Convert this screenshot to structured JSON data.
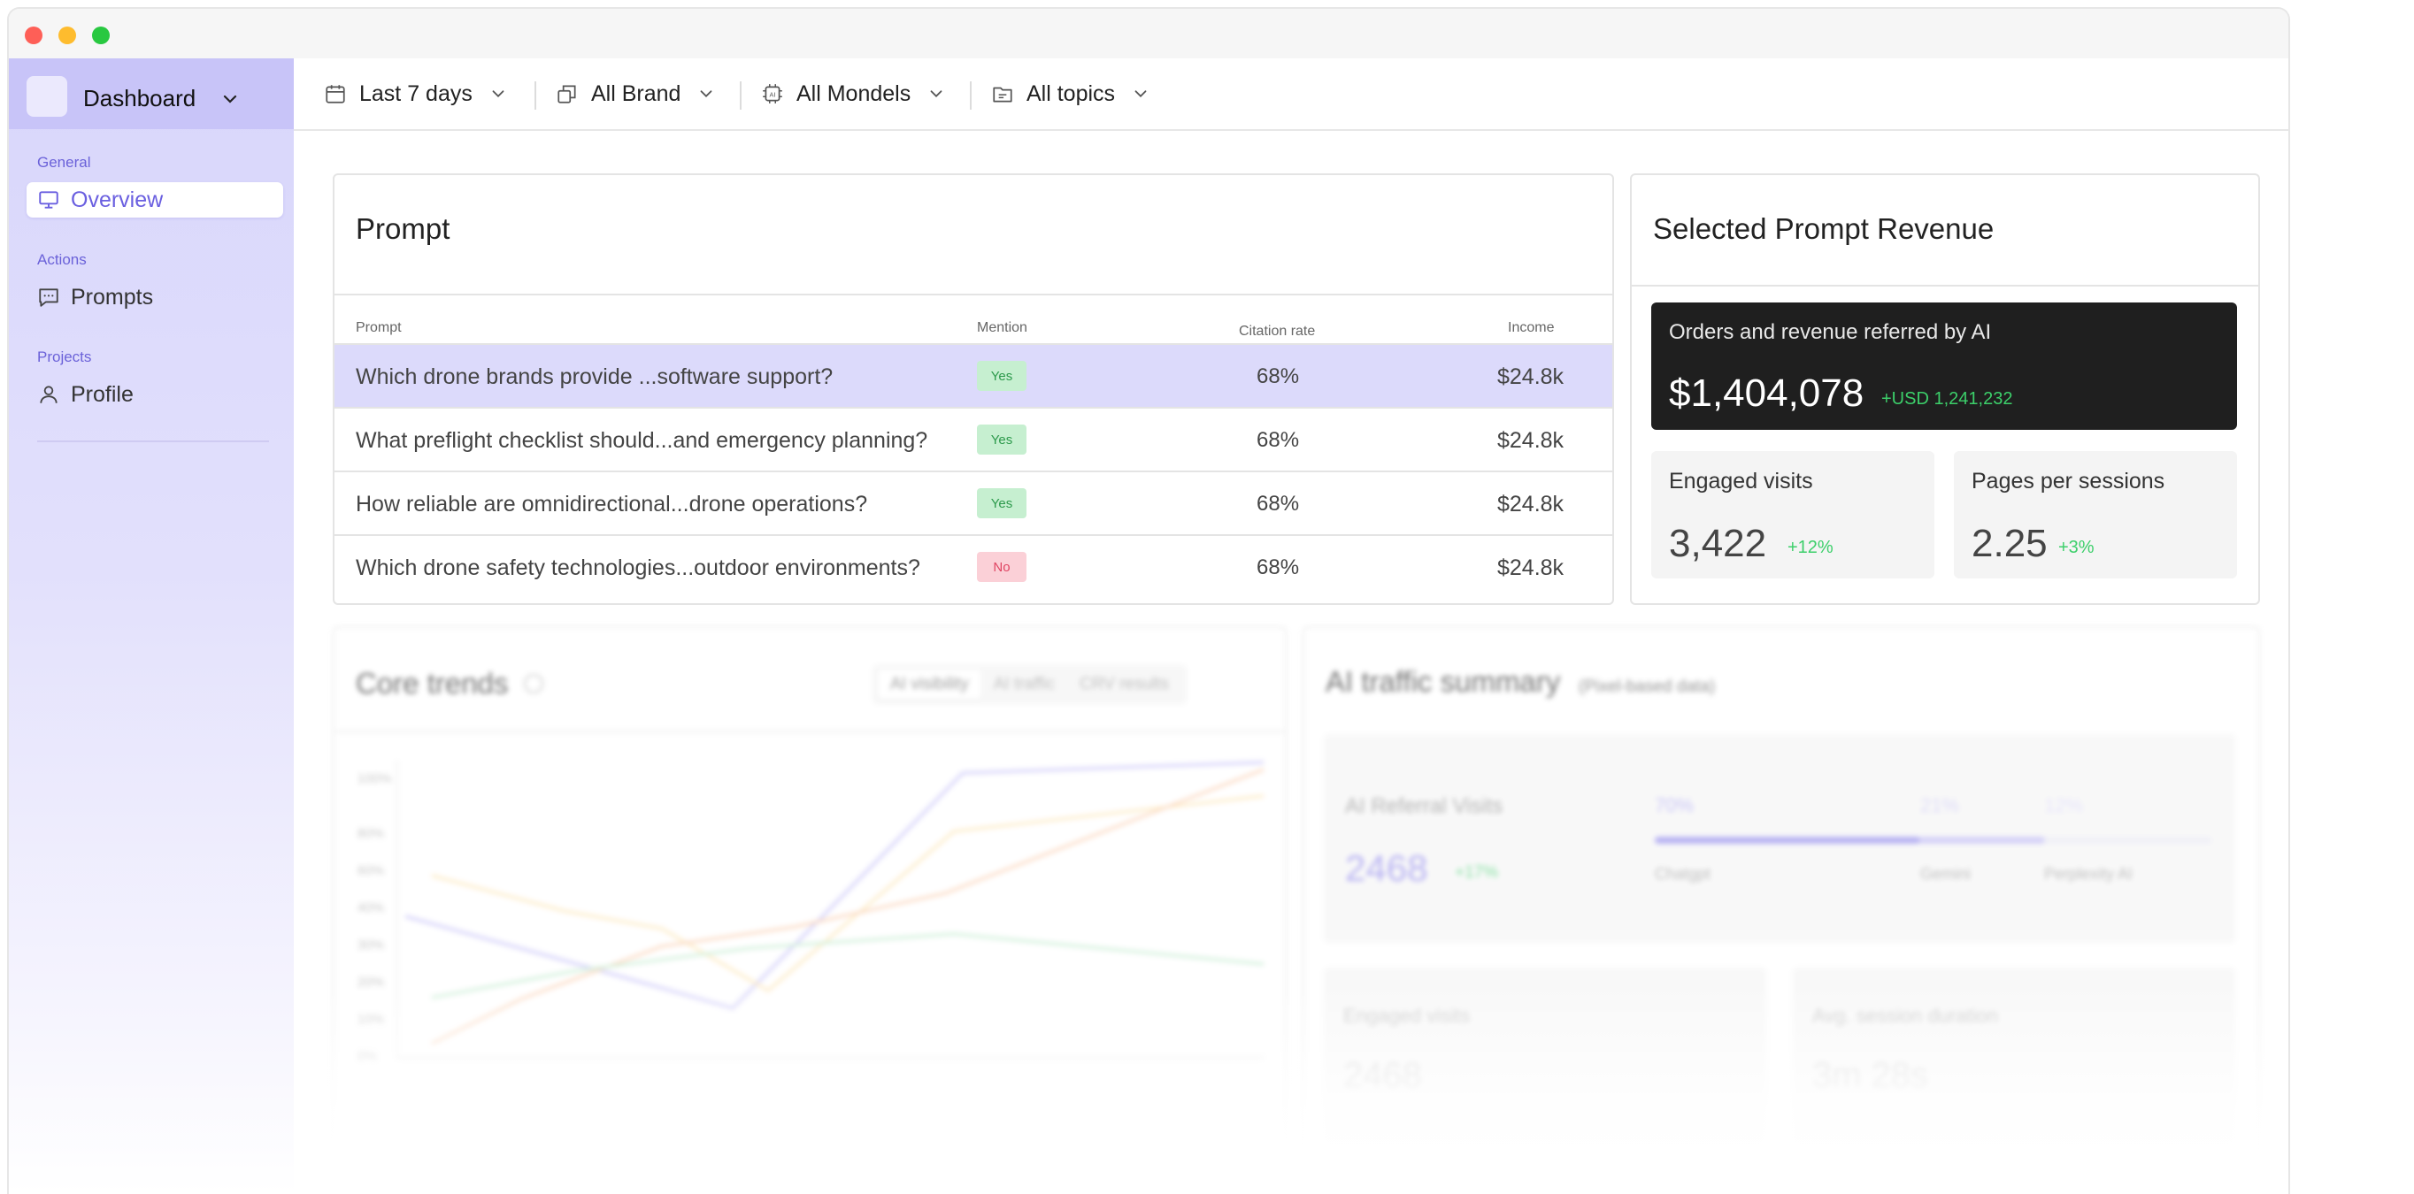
{
  "sidebar": {
    "workspace_label": "Dashboard",
    "sections": {
      "general": "General",
      "actions": "Actions",
      "projects": "Projects"
    },
    "items": {
      "overview": "Overview",
      "prompts": "Prompts",
      "profile": "Profile"
    }
  },
  "filters": {
    "date": "Last 7 days",
    "brand": "All Brand",
    "models": "All Mondels",
    "topics": "All topics"
  },
  "prompt_card": {
    "title": "Prompt",
    "columns": {
      "prompt": "Prompt",
      "mention": "Mention",
      "citation": "Citation rate",
      "income": "Income"
    },
    "rows": [
      {
        "prompt": "Which drone brands provide ...software support?",
        "mention": "Yes",
        "citation": "68%",
        "income": "$24.8k"
      },
      {
        "prompt": "What preflight checklist should...and emergency planning?",
        "mention": "Yes",
        "citation": "68%",
        "income": "$24.8k"
      },
      {
        "prompt": "How reliable are omnidirectional...drone operations?",
        "mention": "Yes",
        "citation": "68%",
        "income": "$24.8k"
      },
      {
        "prompt": "Which drone safety technologies...outdoor environments?",
        "mention": "No",
        "citation": "68%",
        "income": "$24.8k"
      }
    ]
  },
  "revenue_card": {
    "title": "Selected Prompt Revenue",
    "orders_label": "Orders and revenue referred by AI",
    "orders_value": "$1,404,078",
    "orders_delta": "+USD 1,241,232",
    "engaged_label": "Engaged visits",
    "engaged_value": "3,422",
    "engaged_delta": "+12%",
    "pages_label": "Pages per sessions",
    "pages_value": "2.25",
    "pages_delta": "+3%"
  },
  "core_trends": {
    "title": "Core trends",
    "tabs": [
      "AI visibility",
      "AI traffic",
      "CRV results"
    ],
    "y_ticks": [
      "100%",
      "80%",
      "60%",
      "40%",
      "30%",
      "20%",
      "10%",
      "0%"
    ]
  },
  "traffic_summary": {
    "title": "AI traffic summary",
    "subtitle": "(Pixel-based data)",
    "referral_label": "AI Referral Visits",
    "referral_value": "2468",
    "referral_delta": "+17%",
    "shares": [
      "70%",
      "21%",
      "12%"
    ],
    "sources": [
      "Chatgpt",
      "Gemini",
      "Perplexity AI"
    ],
    "engaged_label": "Engaged visits",
    "engaged_value": "2468",
    "duration_label": "Avg. session duration",
    "duration_value": "3m 28s"
  },
  "colors": {
    "accent": "#6a5fe0",
    "sidebar_top": "#d8d6fb",
    "selected_row": "#dcdafb",
    "positive": "#3ccf6a",
    "negative": "#e04462"
  }
}
